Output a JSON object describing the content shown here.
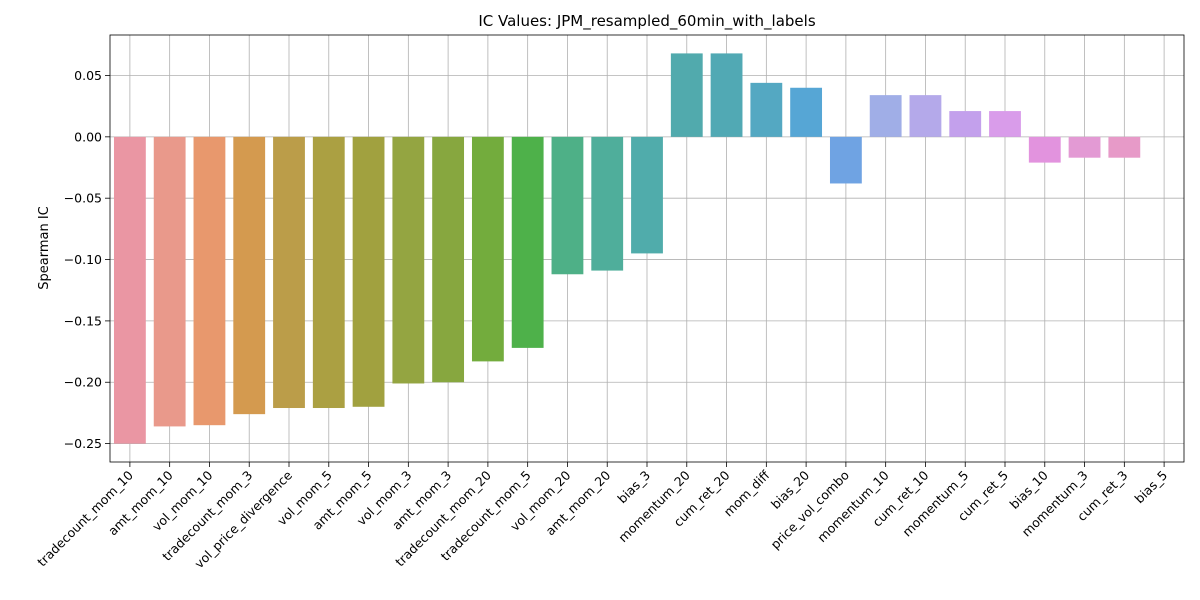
{
  "chart_data": {
    "type": "bar",
    "title": "IC Values: JPM_resampled_60min_with_labels",
    "xlabel": "",
    "ylabel": "Spearman IC",
    "ylim": [
      -0.265,
      0.083
    ],
    "yticks": [
      -0.25,
      -0.2,
      -0.15,
      -0.1,
      -0.05,
      0.0,
      0.05
    ],
    "ytick_labels": [
      "−0.25",
      "−0.20",
      "−0.15",
      "−0.10",
      "−0.05",
      "0.00",
      "0.05"
    ],
    "grid": true,
    "categories": [
      "tradecount_mom_10",
      "amt_mom_10",
      "vol_mom_10",
      "tradecount_mom_3",
      "vol_price_divergence",
      "vol_mom_5",
      "amt_mom_5",
      "vol_mom_3",
      "amt_mom_3",
      "tradecount_mom_20",
      "tradecount_mom_5",
      "vol_mom_20",
      "amt_mom_20",
      "bias_3",
      "momentum_20",
      "cum_ret_20",
      "mom_diff",
      "bias_20",
      "price_vol_combo",
      "momentum_10",
      "cum_ret_10",
      "momentum_5",
      "cum_ret_5",
      "bias_10",
      "momentum_3",
      "cum_ret_3",
      "bias_5"
    ],
    "values": [
      -0.25,
      -0.236,
      -0.235,
      -0.226,
      -0.221,
      -0.221,
      -0.22,
      -0.201,
      -0.2,
      -0.183,
      -0.172,
      -0.112,
      -0.109,
      -0.095,
      0.068,
      0.068,
      0.044,
      0.04,
      -0.038,
      0.034,
      0.034,
      0.021,
      0.021,
      -0.021,
      -0.017,
      -0.017,
      0.0
    ],
    "colors": [
      "#ea96a3",
      "#e9998b",
      "#e8986d",
      "#d49a4f",
      "#bb9d49",
      "#aba042",
      "#a1a13f",
      "#94a541",
      "#87a73f",
      "#73ac3d",
      "#4eb14a",
      "#4eb087",
      "#4fae9b",
      "#50acab",
      "#51aaad",
      "#51a9b4",
      "#54a8c2",
      "#56a6d5",
      "#6fa3e3",
      "#a0aee7",
      "#b4a9ea",
      "#c3a0ec",
      "#d99cea",
      "#e293de",
      "#e39ad4",
      "#e79ac8",
      "#e89bbd"
    ]
  }
}
